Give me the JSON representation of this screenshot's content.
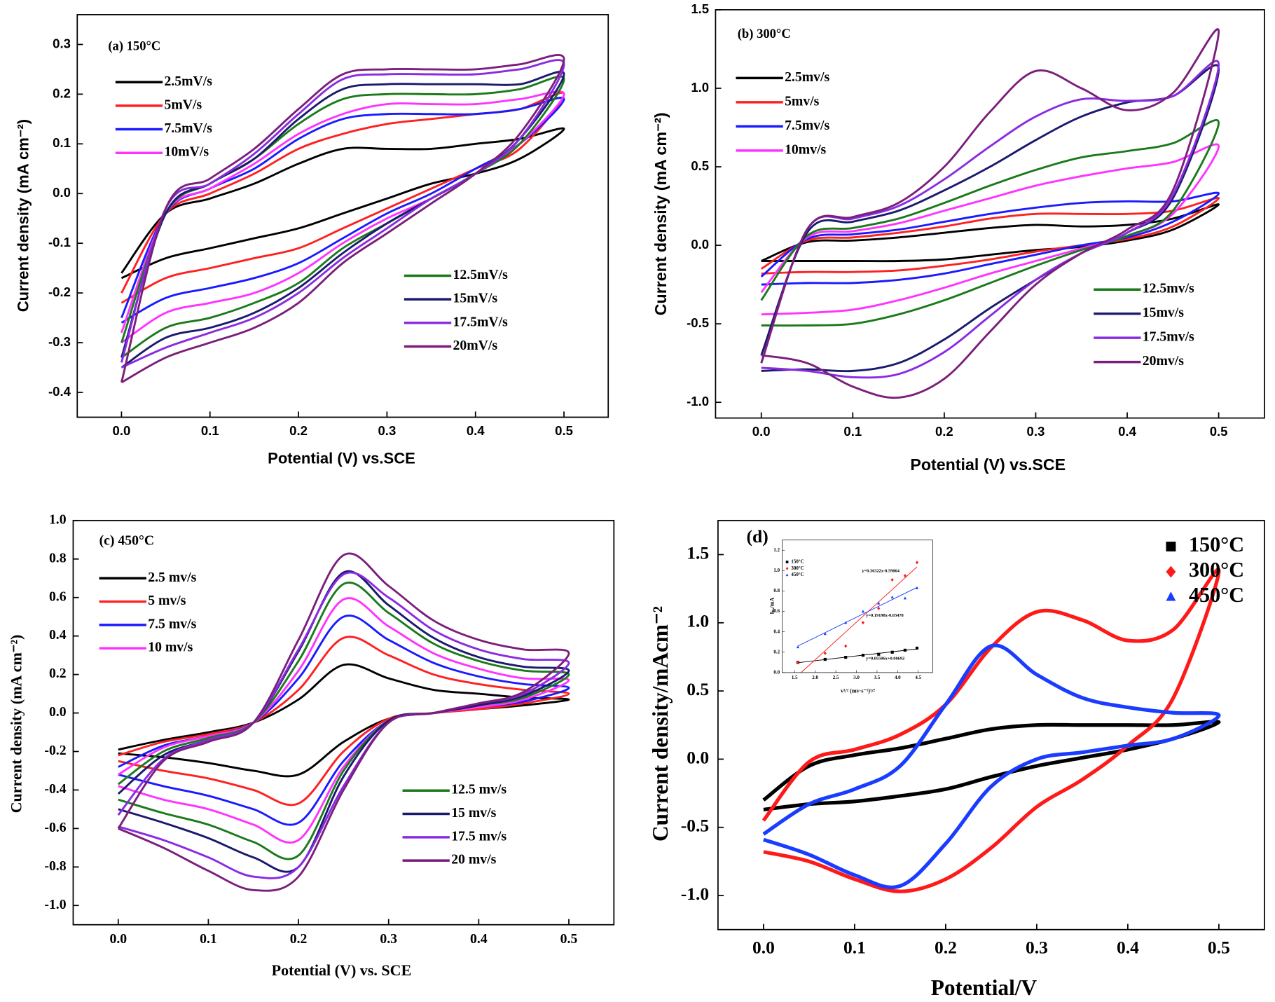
{
  "chart_data": [
    {
      "type": "line",
      "title": "(a) 150°C",
      "xlabel": "Potential (V) vs.SCE",
      "ylabel": "Current density (mA cm⁻²)",
      "x": [
        0,
        0.05,
        0.1,
        0.15,
        0.2,
        0.25,
        0.3,
        0.35,
        0.4,
        0.45,
        0.5,
        0.45,
        0.4,
        0.35,
        0.3,
        0.25,
        0.2,
        0.15,
        0.1,
        0.05,
        0
      ],
      "xlim": [
        -0.05,
        0.55
      ],
      "ylim": [
        -0.45,
        0.36
      ],
      "xticks": [
        {
          "value": 0,
          "label": "0.0"
        },
        0.1,
        0.2,
        0.3,
        0.4,
        0.5
      ],
      "yticks": [
        -0.4,
        -0.3,
        -0.2,
        -0.1,
        {
          "value": 0,
          "label": "0.0"
        },
        0.1,
        0.2,
        0.3
      ],
      "series": [
        {
          "name": "2.5mV/s",
          "color": "#000000",
          "values": [
            -0.16,
            -0.04,
            -0.01,
            0.02,
            0.06,
            0.09,
            0.09,
            0.09,
            0.1,
            0.11,
            0.13,
            0.07,
            0.04,
            0.02,
            -0.01,
            -0.04,
            -0.07,
            -0.09,
            -0.11,
            -0.13,
            -0.17
          ]
        },
        {
          "name": "5mV/s",
          "color": "#ff2020",
          "values": [
            -0.2,
            -0.04,
            0.0,
            0.04,
            0.09,
            0.12,
            0.14,
            0.15,
            0.16,
            0.17,
            0.2,
            0.09,
            0.05,
            0.01,
            -0.03,
            -0.07,
            -0.11,
            -0.13,
            -0.15,
            -0.17,
            -0.22
          ]
        },
        {
          "name": "7.5mV/s",
          "color": "#1a1aff",
          "values": [
            -0.25,
            -0.04,
            0.01,
            0.05,
            0.11,
            0.15,
            0.16,
            0.16,
            0.16,
            0.17,
            0.19,
            0.1,
            0.05,
            0.0,
            -0.04,
            -0.09,
            -0.14,
            -0.17,
            -0.19,
            -0.21,
            -0.26
          ]
        },
        {
          "name": "10mV/s",
          "color": "#ff33ff",
          "values": [
            -0.28,
            -0.04,
            0.01,
            0.06,
            0.12,
            0.16,
            0.18,
            0.18,
            0.18,
            0.19,
            0.2,
            0.1,
            0.04,
            -0.01,
            -0.05,
            -0.1,
            -0.16,
            -0.2,
            -0.22,
            -0.24,
            -0.3
          ]
        },
        {
          "name": "12.5mV/s",
          "color": "#1a7a1a",
          "values": [
            -0.3,
            -0.04,
            0.02,
            0.07,
            0.14,
            0.19,
            0.2,
            0.2,
            0.2,
            0.21,
            0.23,
            0.1,
            0.04,
            -0.01,
            -0.06,
            -0.11,
            -0.18,
            -0.22,
            -0.25,
            -0.27,
            -0.33
          ]
        },
        {
          "name": "15mV/s",
          "color": "#1a1a6e",
          "values": [
            -0.33,
            -0.04,
            0.02,
            0.07,
            0.15,
            0.21,
            0.22,
            0.22,
            0.22,
            0.22,
            0.24,
            0.11,
            0.04,
            -0.01,
            -0.06,
            -0.12,
            -0.19,
            -0.24,
            -0.27,
            -0.29,
            -0.35
          ]
        },
        {
          "name": "17.5mV/s",
          "color": "#8a2be2",
          "values": [
            -0.34,
            -0.03,
            0.02,
            0.08,
            0.16,
            0.23,
            0.24,
            0.24,
            0.24,
            0.25,
            0.26,
            0.11,
            0.04,
            -0.01,
            -0.07,
            -0.13,
            -0.2,
            -0.25,
            -0.28,
            -0.31,
            -0.35
          ]
        },
        {
          "name": "20mV/s",
          "color": "#7b1f7b",
          "values": [
            -0.38,
            -0.03,
            0.03,
            0.09,
            0.17,
            0.24,
            0.25,
            0.25,
            0.25,
            0.26,
            0.27,
            0.12,
            0.04,
            -0.02,
            -0.08,
            -0.14,
            -0.22,
            -0.27,
            -0.3,
            -0.33,
            -0.38
          ]
        }
      ]
    },
    {
      "type": "line",
      "title": "(b) 300°C",
      "xlabel": "Potential (V) vs.SCE",
      "ylabel": "Current density (mA cm⁻²)",
      "x": [
        0,
        0.05,
        0.1,
        0.15,
        0.2,
        0.25,
        0.3,
        0.35,
        0.4,
        0.45,
        0.5,
        0.45,
        0.4,
        0.35,
        0.3,
        0.25,
        0.2,
        0.15,
        0.1,
        0.05,
        0
      ],
      "xlim": [
        -0.05,
        0.55
      ],
      "ylim": [
        -1.1,
        1.5
      ],
      "xticks": [
        {
          "value": 0,
          "label": "0.0"
        },
        0.1,
        0.2,
        0.3,
        0.4,
        0.5
      ],
      "yticks": [
        {
          "value": -1,
          "label": "-1.0"
        },
        -0.5,
        {
          "value": 0,
          "label": "0.0"
        },
        0.5,
        {
          "value": 1,
          "label": "1.0"
        },
        1.5
      ],
      "series": [
        {
          "name": "2.5mv/s",
          "color": "#000000",
          "values": [
            -0.1,
            0.02,
            0.03,
            0.05,
            0.08,
            0.11,
            0.13,
            0.12,
            0.13,
            0.17,
            0.26,
            0.1,
            0.03,
            -0.01,
            -0.03,
            -0.06,
            -0.09,
            -0.1,
            -0.1,
            -0.1,
            -0.1
          ]
        },
        {
          "name": "5mv/s",
          "color": "#ff2020",
          "values": [
            -0.15,
            0.03,
            0.05,
            0.08,
            0.12,
            0.17,
            0.2,
            0.2,
            0.2,
            0.22,
            0.3,
            0.12,
            0.04,
            0.0,
            -0.04,
            -0.09,
            -0.13,
            -0.16,
            -0.17,
            -0.17,
            -0.18
          ]
        },
        {
          "name": "7.5mv/s",
          "color": "#1a1aff",
          "values": [
            -0.2,
            0.04,
            0.07,
            0.1,
            0.15,
            0.2,
            0.24,
            0.27,
            0.28,
            0.28,
            0.33,
            0.15,
            0.05,
            0.0,
            -0.06,
            -0.12,
            -0.18,
            -0.22,
            -0.24,
            -0.24,
            -0.25
          ]
        },
        {
          "name": "10mv/s",
          "color": "#ff33ff",
          "values": [
            -0.3,
            0.05,
            0.09,
            0.14,
            0.22,
            0.3,
            0.38,
            0.44,
            0.49,
            0.53,
            0.63,
            0.2,
            0.06,
            -0.02,
            -0.1,
            -0.18,
            -0.27,
            -0.35,
            -0.41,
            -0.43,
            -0.44
          ]
        },
        {
          "name": "12.5mv/s",
          "color": "#1a7a1a",
          "values": [
            -0.35,
            0.06,
            0.11,
            0.17,
            0.27,
            0.38,
            0.48,
            0.56,
            0.6,
            0.65,
            0.78,
            0.22,
            0.06,
            -0.03,
            -0.13,
            -0.24,
            -0.35,
            -0.44,
            -0.5,
            -0.51,
            -0.51
          ]
        },
        {
          "name": "15mv/s",
          "color": "#1a1a6e",
          "values": [
            -0.7,
            0.08,
            0.15,
            0.22,
            0.35,
            0.5,
            0.67,
            0.82,
            0.91,
            0.95,
            1.12,
            0.3,
            0.08,
            -0.05,
            -0.22,
            -0.4,
            -0.6,
            -0.75,
            -0.8,
            -0.79,
            -0.8
          ]
        },
        {
          "name": "17.5mv/s",
          "color": "#8a2be2",
          "values": [
            -0.75,
            0.1,
            0.17,
            0.25,
            0.42,
            0.63,
            0.82,
            0.93,
            0.92,
            0.95,
            1.15,
            0.32,
            0.08,
            -0.05,
            -0.22,
            -0.45,
            -0.68,
            -0.82,
            -0.84,
            -0.8,
            -0.78
          ]
        },
        {
          "name": "20mv/s",
          "color": "#7b1f7b",
          "values": [
            -0.75,
            0.1,
            0.18,
            0.27,
            0.5,
            0.85,
            1.11,
            1.0,
            0.86,
            0.97,
            1.36,
            0.35,
            0.1,
            -0.05,
            -0.25,
            -0.55,
            -0.85,
            -0.97,
            -0.9,
            -0.75,
            -0.7
          ]
        }
      ]
    },
    {
      "type": "line",
      "title": "(c) 450°C",
      "xlabel": "Potential (V) vs. SCE",
      "ylabel": "Current density (mA cm⁻²)",
      "x": [
        0,
        0.05,
        0.1,
        0.15,
        0.2,
        0.25,
        0.3,
        0.35,
        0.4,
        0.45,
        0.5,
        0.45,
        0.4,
        0.35,
        0.3,
        0.25,
        0.2,
        0.15,
        0.1,
        0.05,
        0
      ],
      "xlim": [
        -0.05,
        0.55
      ],
      "ylim": [
        -1.1,
        1.0
      ],
      "xticks": [
        {
          "value": 0,
          "label": "0.0"
        },
        0.1,
        0.2,
        0.3,
        0.4,
        0.5
      ],
      "yticks": [
        {
          "value": -1,
          "label": "-1.0"
        },
        -0.8,
        -0.6,
        -0.4,
        -0.2,
        {
          "value": 0,
          "label": "0.0"
        },
        0.2,
        0.4,
        0.6,
        0.8,
        {
          "value": 1,
          "label": "1.0"
        }
      ],
      "series": [
        {
          "name": "2.5 mv/s",
          "color": "#000000",
          "values": [
            -0.19,
            -0.14,
            -0.1,
            -0.05,
            0.07,
            0.25,
            0.18,
            0.12,
            0.1,
            0.08,
            0.07,
            0.04,
            0.02,
            0.0,
            -0.03,
            -0.15,
            -0.32,
            -0.3,
            -0.26,
            -0.23,
            -0.21
          ]
        },
        {
          "name": "5 mv/s",
          "color": "#ff2020",
          "values": [
            -0.22,
            -0.15,
            -0.11,
            -0.05,
            0.12,
            0.39,
            0.3,
            0.2,
            0.15,
            0.12,
            0.1,
            0.05,
            0.02,
            0.0,
            -0.03,
            -0.2,
            -0.47,
            -0.4,
            -0.34,
            -0.3,
            -0.25
          ]
        },
        {
          "name": "7.5 mv/s",
          "color": "#1a1aff",
          "values": [
            -0.28,
            -0.17,
            -0.12,
            -0.05,
            0.18,
            0.5,
            0.38,
            0.26,
            0.19,
            0.15,
            0.13,
            0.06,
            0.03,
            0.0,
            -0.04,
            -0.25,
            -0.57,
            -0.5,
            -0.43,
            -0.38,
            -0.32
          ]
        },
        {
          "name": "10 mv/s",
          "color": "#ff33ff",
          "values": [
            -0.32,
            -0.18,
            -0.12,
            -0.05,
            0.22,
            0.59,
            0.45,
            0.31,
            0.23,
            0.18,
            0.17,
            0.07,
            0.03,
            0.0,
            -0.04,
            -0.28,
            -0.66,
            -0.58,
            -0.5,
            -0.45,
            -0.38
          ]
        },
        {
          "name": "12.5 mv/s",
          "color": "#1a7a1a",
          "values": [
            -0.37,
            -0.2,
            -0.13,
            -0.05,
            0.27,
            0.67,
            0.52,
            0.36,
            0.27,
            0.22,
            0.2,
            0.08,
            0.04,
            0.0,
            -0.04,
            -0.3,
            -0.74,
            -0.67,
            -0.58,
            -0.52,
            -0.45
          ]
        },
        {
          "name": "15 mv/s",
          "color": "#1a1a6e",
          "values": [
            -0.42,
            -0.22,
            -0.14,
            -0.05,
            0.32,
            0.73,
            0.56,
            0.39,
            0.29,
            0.24,
            0.22,
            0.09,
            0.04,
            0.0,
            -0.04,
            -0.33,
            -0.8,
            -0.75,
            -0.65,
            -0.57,
            -0.5
          ]
        },
        {
          "name": "17.5 mv/s",
          "color": "#8a2be2",
          "values": [
            -0.53,
            -0.24,
            -0.14,
            -0.05,
            0.33,
            0.72,
            0.6,
            0.43,
            0.33,
            0.28,
            0.26,
            0.1,
            0.05,
            0.0,
            -0.05,
            -0.38,
            -0.8,
            -0.85,
            -0.75,
            -0.66,
            -0.59
          ]
        },
        {
          "name": "20 mv/s",
          "color": "#7b1f7b",
          "values": [
            -0.6,
            -0.25,
            -0.15,
            -0.05,
            0.38,
            0.82,
            0.66,
            0.48,
            0.38,
            0.33,
            0.31,
            0.11,
            0.05,
            0.0,
            -0.05,
            -0.4,
            -0.85,
            -0.92,
            -0.82,
            -0.7,
            -0.6
          ]
        }
      ]
    },
    {
      "type": "line",
      "title": "(d)",
      "xlabel": "Potential/V",
      "ylabel": "Current density/mAcm⁻²",
      "x": [
        0,
        0.05,
        0.1,
        0.15,
        0.2,
        0.25,
        0.3,
        0.35,
        0.4,
        0.45,
        0.5,
        0.45,
        0.4,
        0.35,
        0.3,
        0.25,
        0.2,
        0.15,
        0.1,
        0.05,
        0
      ],
      "xlim": [
        -0.05,
        0.55
      ],
      "ylim": [
        -1.25,
        1.75
      ],
      "xticks": [
        {
          "value": 0,
          "label": "0.0"
        },
        0.1,
        0.2,
        0.3,
        0.4,
        0.5
      ],
      "yticks": [
        {
          "value": -1,
          "label": "-1.0"
        },
        -0.5,
        {
          "value": 0,
          "label": "0.0"
        },
        0.5,
        {
          "value": 1,
          "label": "1.0"
        },
        1.5
      ],
      "series": [
        {
          "name": "150°C",
          "color": "#000000",
          "marker": "square",
          "values": [
            -0.3,
            -0.05,
            0.03,
            0.08,
            0.15,
            0.22,
            0.25,
            0.25,
            0.25,
            0.25,
            0.27,
            0.15,
            0.07,
            0.01,
            -0.05,
            -0.13,
            -0.22,
            -0.27,
            -0.31,
            -0.33,
            -0.37
          ]
        },
        {
          "name": "300°C",
          "color": "#ff1a1a",
          "marker": "diamond",
          "values": [
            -0.45,
            -0.02,
            0.07,
            0.18,
            0.4,
            0.82,
            1.08,
            1.02,
            0.87,
            0.95,
            1.38,
            0.45,
            0.1,
            -0.15,
            -0.35,
            -0.65,
            -0.88,
            -0.97,
            -0.88,
            -0.75,
            -0.68
          ]
        },
        {
          "name": "450°C",
          "color": "#1a3cff",
          "marker": "triangle",
          "values": [
            -0.55,
            -0.33,
            -0.22,
            -0.05,
            0.4,
            0.83,
            0.62,
            0.45,
            0.38,
            0.34,
            0.32,
            0.15,
            0.1,
            0.05,
            0.0,
            -0.2,
            -0.62,
            -0.93,
            -0.85,
            -0.7,
            -0.59
          ]
        }
      ]
    },
    {
      "type": "scatter",
      "xlabel": "v¹/² (mv·s⁻¹)¹/²",
      "ylabel": "Iₚₐ/mA",
      "x": [
        1.58,
        2.24,
        2.74,
        3.16,
        3.54,
        3.87,
        4.18,
        4.47
      ],
      "xlim": [
        1.2,
        4.85
      ],
      "ylim": [
        0,
        1.3
      ],
      "xticks": [
        1.5,
        {
          "value": 2,
          "label": "2.0"
        },
        2.5,
        {
          "value": 3,
          "label": "3.0"
        },
        3.5,
        {
          "value": 4,
          "label": "4.0"
        },
        4.5
      ],
      "yticks": [
        {
          "value": 0,
          "label": "0.0"
        },
        0.2,
        0.4,
        0.6,
        0.8,
        {
          "value": 1,
          "label": "1.0"
        },
        1.2
      ],
      "series": [
        {
          "name": "150°C",
          "color": "#000000",
          "marker": "square",
          "fit_label": "y=0.05506x+0.00692",
          "values": [
            0.1,
            0.13,
            0.15,
            0.17,
            0.18,
            0.2,
            0.22,
            0.24
          ]
        },
        {
          "name": "300°C",
          "color": "#ff1a1a",
          "marker": "diamond",
          "fit_label": "y=0.36322x-0.59064",
          "values": [
            0.1,
            0.19,
            0.26,
            0.49,
            0.63,
            0.91,
            0.95,
            1.08
          ]
        },
        {
          "name": "450°C",
          "color": "#1a3cff",
          "marker": "triangle",
          "fit_label": "y=0.19198x-0.03478",
          "values": [
            0.25,
            0.38,
            0.49,
            0.6,
            0.68,
            0.74,
            0.73,
            0.83
          ]
        }
      ]
    }
  ]
}
